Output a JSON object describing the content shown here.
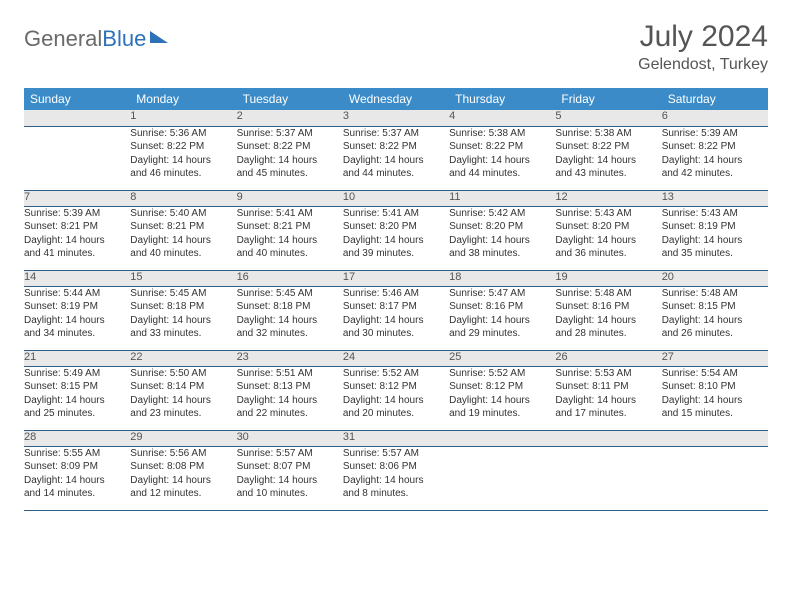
{
  "brand": {
    "part1": "General",
    "part2": "Blue"
  },
  "title": "July 2024",
  "location": "Gelendost, Turkey",
  "colors": {
    "header_bg": "#3b8bc9",
    "daynum_bg": "#e8e8e8",
    "row_divider": "#2d5f8a",
    "text": "#333333",
    "title_text": "#555555"
  },
  "weekdays": [
    "Sunday",
    "Monday",
    "Tuesday",
    "Wednesday",
    "Thursday",
    "Friday",
    "Saturday"
  ],
  "weeks": [
    {
      "nums": [
        "",
        "1",
        "2",
        "3",
        "4",
        "5",
        "6"
      ],
      "cells": [
        null,
        {
          "sr": "Sunrise: 5:36 AM",
          "ss": "Sunset: 8:22 PM",
          "d1": "Daylight: 14 hours",
          "d2": "and 46 minutes."
        },
        {
          "sr": "Sunrise: 5:37 AM",
          "ss": "Sunset: 8:22 PM",
          "d1": "Daylight: 14 hours",
          "d2": "and 45 minutes."
        },
        {
          "sr": "Sunrise: 5:37 AM",
          "ss": "Sunset: 8:22 PM",
          "d1": "Daylight: 14 hours",
          "d2": "and 44 minutes."
        },
        {
          "sr": "Sunrise: 5:38 AM",
          "ss": "Sunset: 8:22 PM",
          "d1": "Daylight: 14 hours",
          "d2": "and 44 minutes."
        },
        {
          "sr": "Sunrise: 5:38 AM",
          "ss": "Sunset: 8:22 PM",
          "d1": "Daylight: 14 hours",
          "d2": "and 43 minutes."
        },
        {
          "sr": "Sunrise: 5:39 AM",
          "ss": "Sunset: 8:22 PM",
          "d1": "Daylight: 14 hours",
          "d2": "and 42 minutes."
        }
      ]
    },
    {
      "nums": [
        "7",
        "8",
        "9",
        "10",
        "11",
        "12",
        "13"
      ],
      "cells": [
        {
          "sr": "Sunrise: 5:39 AM",
          "ss": "Sunset: 8:21 PM",
          "d1": "Daylight: 14 hours",
          "d2": "and 41 minutes."
        },
        {
          "sr": "Sunrise: 5:40 AM",
          "ss": "Sunset: 8:21 PM",
          "d1": "Daylight: 14 hours",
          "d2": "and 40 minutes."
        },
        {
          "sr": "Sunrise: 5:41 AM",
          "ss": "Sunset: 8:21 PM",
          "d1": "Daylight: 14 hours",
          "d2": "and 40 minutes."
        },
        {
          "sr": "Sunrise: 5:41 AM",
          "ss": "Sunset: 8:20 PM",
          "d1": "Daylight: 14 hours",
          "d2": "and 39 minutes."
        },
        {
          "sr": "Sunrise: 5:42 AM",
          "ss": "Sunset: 8:20 PM",
          "d1": "Daylight: 14 hours",
          "d2": "and 38 minutes."
        },
        {
          "sr": "Sunrise: 5:43 AM",
          "ss": "Sunset: 8:20 PM",
          "d1": "Daylight: 14 hours",
          "d2": "and 36 minutes."
        },
        {
          "sr": "Sunrise: 5:43 AM",
          "ss": "Sunset: 8:19 PM",
          "d1": "Daylight: 14 hours",
          "d2": "and 35 minutes."
        }
      ]
    },
    {
      "nums": [
        "14",
        "15",
        "16",
        "17",
        "18",
        "19",
        "20"
      ],
      "cells": [
        {
          "sr": "Sunrise: 5:44 AM",
          "ss": "Sunset: 8:19 PM",
          "d1": "Daylight: 14 hours",
          "d2": "and 34 minutes."
        },
        {
          "sr": "Sunrise: 5:45 AM",
          "ss": "Sunset: 8:18 PM",
          "d1": "Daylight: 14 hours",
          "d2": "and 33 minutes."
        },
        {
          "sr": "Sunrise: 5:45 AM",
          "ss": "Sunset: 8:18 PM",
          "d1": "Daylight: 14 hours",
          "d2": "and 32 minutes."
        },
        {
          "sr": "Sunrise: 5:46 AM",
          "ss": "Sunset: 8:17 PM",
          "d1": "Daylight: 14 hours",
          "d2": "and 30 minutes."
        },
        {
          "sr": "Sunrise: 5:47 AM",
          "ss": "Sunset: 8:16 PM",
          "d1": "Daylight: 14 hours",
          "d2": "and 29 minutes."
        },
        {
          "sr": "Sunrise: 5:48 AM",
          "ss": "Sunset: 8:16 PM",
          "d1": "Daylight: 14 hours",
          "d2": "and 28 minutes."
        },
        {
          "sr": "Sunrise: 5:48 AM",
          "ss": "Sunset: 8:15 PM",
          "d1": "Daylight: 14 hours",
          "d2": "and 26 minutes."
        }
      ]
    },
    {
      "nums": [
        "21",
        "22",
        "23",
        "24",
        "25",
        "26",
        "27"
      ],
      "cells": [
        {
          "sr": "Sunrise: 5:49 AM",
          "ss": "Sunset: 8:15 PM",
          "d1": "Daylight: 14 hours",
          "d2": "and 25 minutes."
        },
        {
          "sr": "Sunrise: 5:50 AM",
          "ss": "Sunset: 8:14 PM",
          "d1": "Daylight: 14 hours",
          "d2": "and 23 minutes."
        },
        {
          "sr": "Sunrise: 5:51 AM",
          "ss": "Sunset: 8:13 PM",
          "d1": "Daylight: 14 hours",
          "d2": "and 22 minutes."
        },
        {
          "sr": "Sunrise: 5:52 AM",
          "ss": "Sunset: 8:12 PM",
          "d1": "Daylight: 14 hours",
          "d2": "and 20 minutes."
        },
        {
          "sr": "Sunrise: 5:52 AM",
          "ss": "Sunset: 8:12 PM",
          "d1": "Daylight: 14 hours",
          "d2": "and 19 minutes."
        },
        {
          "sr": "Sunrise: 5:53 AM",
          "ss": "Sunset: 8:11 PM",
          "d1": "Daylight: 14 hours",
          "d2": "and 17 minutes."
        },
        {
          "sr": "Sunrise: 5:54 AM",
          "ss": "Sunset: 8:10 PM",
          "d1": "Daylight: 14 hours",
          "d2": "and 15 minutes."
        }
      ]
    },
    {
      "nums": [
        "28",
        "29",
        "30",
        "31",
        "",
        "",
        ""
      ],
      "cells": [
        {
          "sr": "Sunrise: 5:55 AM",
          "ss": "Sunset: 8:09 PM",
          "d1": "Daylight: 14 hours",
          "d2": "and 14 minutes."
        },
        {
          "sr": "Sunrise: 5:56 AM",
          "ss": "Sunset: 8:08 PM",
          "d1": "Daylight: 14 hours",
          "d2": "and 12 minutes."
        },
        {
          "sr": "Sunrise: 5:57 AM",
          "ss": "Sunset: 8:07 PM",
          "d1": "Daylight: 14 hours",
          "d2": "and 10 minutes."
        },
        {
          "sr": "Sunrise: 5:57 AM",
          "ss": "Sunset: 8:06 PM",
          "d1": "Daylight: 14 hours",
          "d2": "and 8 minutes."
        },
        null,
        null,
        null
      ]
    }
  ]
}
